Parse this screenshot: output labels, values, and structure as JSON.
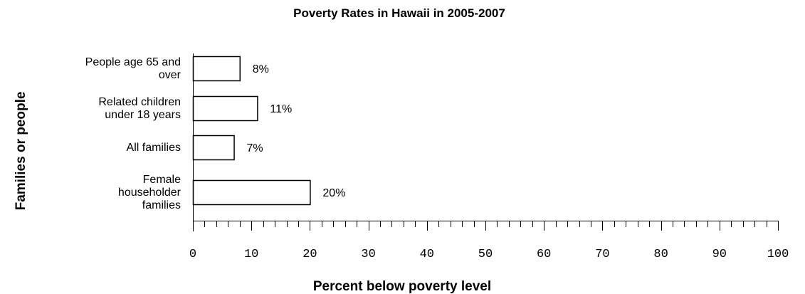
{
  "chart_data": {
    "type": "bar",
    "orientation": "horizontal",
    "title": "Poverty Rates in Hawaii in 2005-2007",
    "xlabel": "Percent below poverty level",
    "ylabel": "Families or people",
    "categories": [
      [
        "People age 65 and",
        "over"
      ],
      [
        "Related children",
        "under 18 years"
      ],
      [
        "All families"
      ],
      [
        "Female",
        "householder",
        "families"
      ]
    ],
    "values": [
      8,
      11,
      7,
      20
    ],
    "data_labels": [
      "8%",
      "11%",
      "7%",
      "20%"
    ],
    "xlim": [
      0,
      100
    ],
    "xticks": [
      "0",
      "10",
      "20",
      "30",
      "40",
      "50",
      "60",
      "70",
      "80",
      "90",
      "100"
    ],
    "bar_fill": "#ffffff",
    "bar_stroke": "#000000",
    "grid": false,
    "legend": "none"
  }
}
